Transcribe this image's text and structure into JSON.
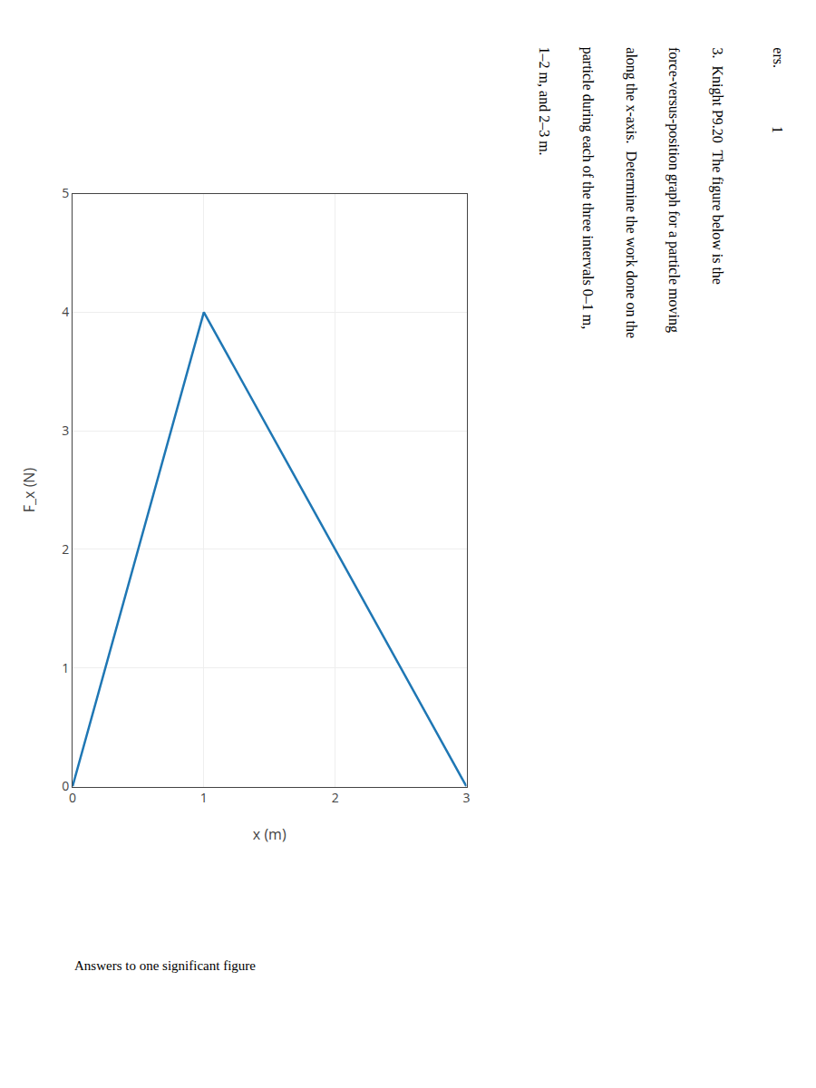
{
  "chart_data": {
    "type": "line",
    "x": [
      0,
      1,
      2,
      3
    ],
    "values": [
      0,
      4,
      2,
      0
    ],
    "xlabel": "x (m)",
    "ylabel": "F_x (N)",
    "xlim": [
      0,
      3
    ],
    "ylim": [
      0,
      5
    ],
    "xticks": [
      0,
      1,
      2,
      3
    ],
    "yticks": [
      0,
      1,
      2,
      3,
      4,
      5
    ],
    "grid": true,
    "annotations": [
      "3.  Knight P9.20  The figure below is the",
      "force-versus-position graph for a particle moving",
      "along the x-axis.  Determine the work done on the",
      "particle during each of the three intervals 0–1 m,",
      "1–2 m, and 2–3 m.",
      "ers.",
      "1",
      "Answers to one significant figure"
    ]
  }
}
